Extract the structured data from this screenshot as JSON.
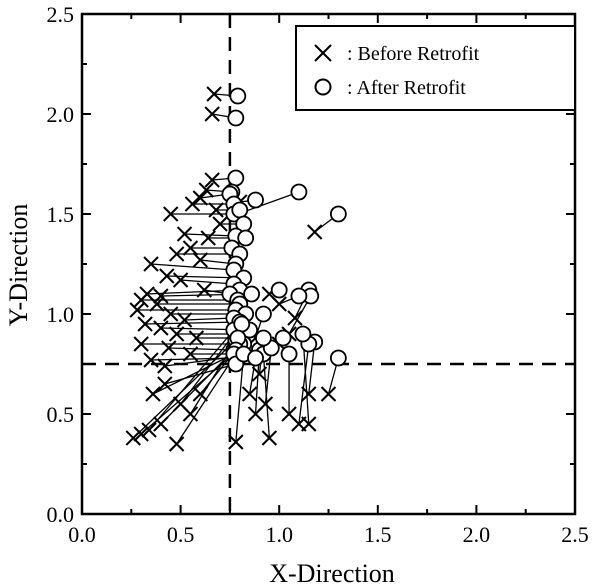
{
  "chart_data": {
    "type": "scatter",
    "title": "",
    "xlabel": "X-Direction",
    "ylabel": "Y-Direction",
    "xlim": [
      0.0,
      2.5
    ],
    "ylim": [
      0.0,
      2.5
    ],
    "xticks": [
      "0.0",
      "0.5",
      "1.0",
      "1.5",
      "2.0",
      "2.5"
    ],
    "yticks": [
      "0.0",
      "0.5",
      "1.0",
      "1.5",
      "2.0",
      "2.5"
    ],
    "grid": false,
    "legend_position": "top-right",
    "thresholds": {
      "x": 0.75,
      "y": 0.75,
      "style": "dashed"
    },
    "series": [
      {
        "name": ": Before Retrofit",
        "marker": "x"
      },
      {
        "name": ": After Retrofit",
        "marker": "o"
      }
    ],
    "pairs": [
      [
        0.67,
        2.1,
        0.79,
        2.09
      ],
      [
        0.66,
        2.0,
        0.78,
        1.98
      ],
      [
        0.66,
        1.67,
        0.78,
        1.68
      ],
      [
        0.63,
        1.62,
        0.76,
        1.61
      ],
      [
        0.6,
        1.58,
        0.75,
        1.6
      ],
      [
        0.56,
        1.55,
        0.77,
        1.55
      ],
      [
        0.45,
        1.5,
        0.77,
        1.5
      ],
      [
        0.68,
        1.52,
        0.8,
        1.52
      ],
      [
        0.79,
        1.5,
        1.1,
        1.61
      ],
      [
        0.8,
        1.56,
        0.88,
        1.57
      ],
      [
        1.18,
        1.41,
        1.3,
        1.5
      ],
      [
        0.7,
        1.45,
        0.82,
        1.45
      ],
      [
        0.52,
        1.4,
        0.78,
        1.39
      ],
      [
        0.64,
        1.38,
        0.83,
        1.38
      ],
      [
        0.55,
        1.33,
        0.76,
        1.33
      ],
      [
        0.48,
        1.3,
        0.8,
        1.3
      ],
      [
        0.6,
        1.27,
        0.78,
        1.25
      ],
      [
        0.35,
        1.25,
        0.77,
        1.22
      ],
      [
        0.43,
        1.19,
        0.82,
        1.18
      ],
      [
        0.5,
        1.17,
        0.77,
        1.15
      ],
      [
        0.33,
        1.1,
        0.8,
        1.12
      ],
      [
        0.4,
        1.09,
        0.86,
        1.1
      ],
      [
        0.62,
        1.12,
        0.75,
        1.1
      ],
      [
        0.3,
        1.07,
        0.79,
        1.07
      ],
      [
        0.38,
        1.05,
        0.8,
        1.05
      ],
      [
        0.28,
        1.02,
        0.78,
        1.02
      ],
      [
        0.45,
        1.0,
        0.83,
        1.0
      ],
      [
        0.52,
        0.97,
        0.77,
        0.98
      ],
      [
        0.32,
        0.95,
        0.8,
        0.96
      ],
      [
        0.4,
        0.93,
        0.85,
        0.92
      ],
      [
        0.48,
        0.9,
        0.78,
        0.9
      ],
      [
        0.58,
        0.88,
        0.79,
        0.88
      ],
      [
        0.3,
        0.85,
        0.82,
        0.85
      ],
      [
        0.44,
        0.83,
        0.77,
        0.82
      ],
      [
        0.55,
        0.8,
        0.8,
        0.8
      ],
      [
        0.35,
        0.77,
        0.78,
        0.78
      ],
      [
        0.42,
        0.74,
        0.8,
        0.79
      ],
      [
        0.26,
        0.38,
        0.78,
        0.87
      ],
      [
        0.3,
        0.4,
        0.79,
        0.82
      ],
      [
        0.34,
        0.42,
        0.77,
        0.92
      ],
      [
        0.4,
        0.45,
        0.8,
        0.85
      ],
      [
        0.48,
        0.35,
        0.78,
        0.8
      ],
      [
        0.5,
        0.55,
        0.81,
        0.95
      ],
      [
        0.55,
        0.5,
        0.79,
        0.88
      ],
      [
        0.6,
        0.6,
        0.78,
        0.82
      ],
      [
        0.36,
        0.6,
        0.77,
        0.8
      ],
      [
        0.42,
        0.65,
        0.78,
        0.75
      ],
      [
        1.08,
        0.98,
        1.15,
        1.12
      ],
      [
        1.05,
        0.9,
        1.16,
        1.09
      ],
      [
        1.0,
        1.05,
        1.1,
        1.09
      ],
      [
        0.95,
        1.1,
        1.0,
        1.12
      ],
      [
        1.25,
        0.6,
        1.3,
        0.78
      ],
      [
        1.15,
        0.6,
        1.18,
        0.86
      ],
      [
        1.1,
        0.45,
        1.15,
        0.85
      ],
      [
        1.15,
        0.45,
        1.12,
        0.9
      ],
      [
        0.88,
        0.5,
        0.9,
        0.82
      ],
      [
        0.95,
        0.38,
        0.92,
        0.8
      ],
      [
        0.78,
        0.36,
        0.82,
        0.8
      ],
      [
        0.93,
        0.55,
        0.96,
        0.83
      ],
      [
        1.05,
        0.5,
        1.05,
        0.8
      ],
      [
        0.85,
        0.6,
        0.88,
        0.78
      ],
      [
        1.0,
        0.85,
        1.02,
        0.88
      ],
      [
        0.9,
        0.7,
        0.92,
        0.88
      ],
      [
        0.88,
        0.88,
        0.92,
        1.0
      ]
    ]
  },
  "legend": {
    "before_label": ": Before Retrofit",
    "after_label": ": After Retrofit"
  },
  "axes": {
    "x_title": "X-Direction",
    "y_title": "Y-Direction"
  }
}
